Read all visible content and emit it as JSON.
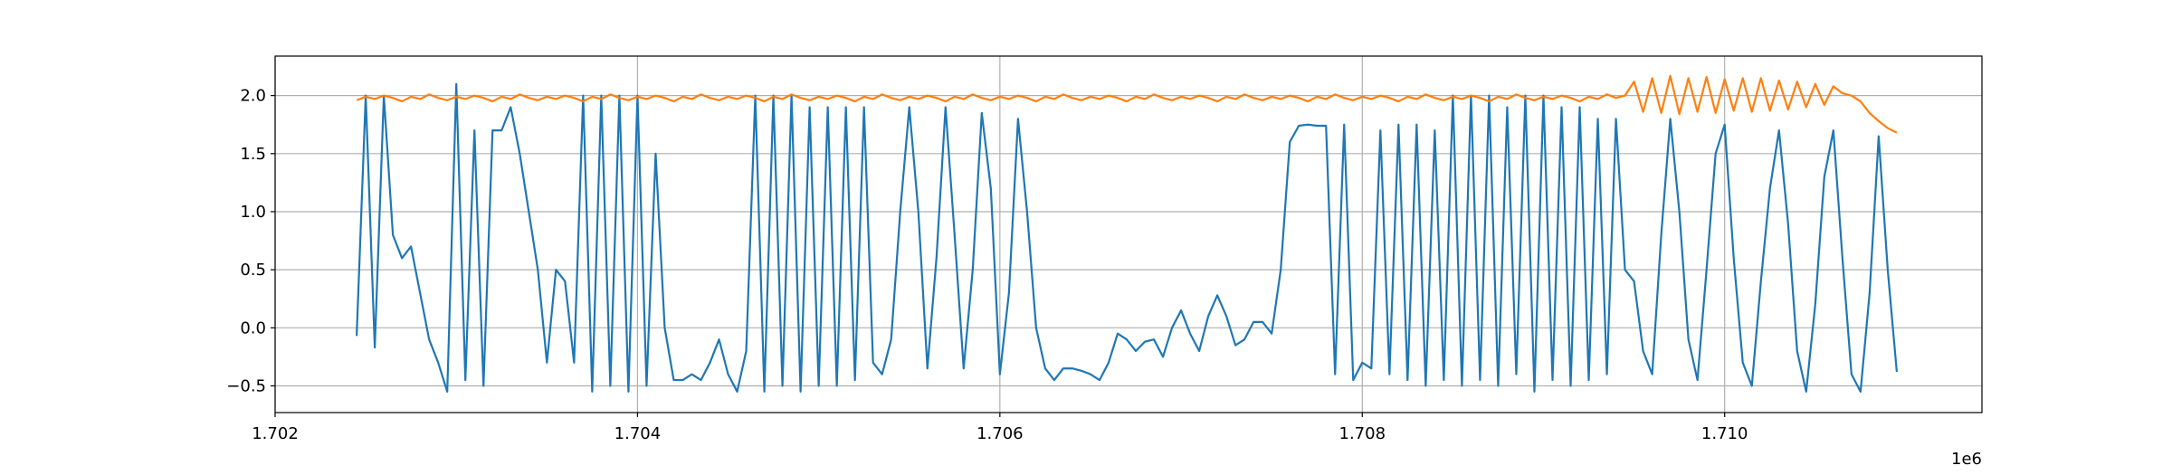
{
  "chart_data": {
    "type": "line",
    "x_offset_label": "1e6",
    "x": [
      1702450,
      1702500,
      1702550,
      1702600,
      1702650,
      1702700,
      1702750,
      1702800,
      1702850,
      1702900,
      1702950,
      1703000,
      1703050,
      1703100,
      1703150,
      1703200,
      1703250,
      1703300,
      1703350,
      1703400,
      1703450,
      1703500,
      1703550,
      1703600,
      1703650,
      1703700,
      1703750,
      1703800,
      1703850,
      1703900,
      1703950,
      1704000,
      1704050,
      1704100,
      1704150,
      1704200,
      1704250,
      1704300,
      1704350,
      1704400,
      1704450,
      1704500,
      1704550,
      1704600,
      1704650,
      1704700,
      1704750,
      1704800,
      1704850,
      1704900,
      1704950,
      1705000,
      1705050,
      1705100,
      1705150,
      1705200,
      1705250,
      1705300,
      1705350,
      1705400,
      1705450,
      1705500,
      1705550,
      1705600,
      1705650,
      1705700,
      1705750,
      1705800,
      1705850,
      1705900,
      1705950,
      1706000,
      1706050,
      1706100,
      1706150,
      1706200,
      1706250,
      1706300,
      1706350,
      1706400,
      1706450,
      1706500,
      1706550,
      1706600,
      1706650,
      1706700,
      1706750,
      1706800,
      1706850,
      1706900,
      1706950,
      1707000,
      1707050,
      1707100,
      1707150,
      1707200,
      1707250,
      1707300,
      1707350,
      1707400,
      1707450,
      1707500,
      1707550,
      1707600,
      1707650,
      1707700,
      1707750,
      1707800,
      1707850,
      1707900,
      1707950,
      1708000,
      1708050,
      1708100,
      1708150,
      1708200,
      1708250,
      1708300,
      1708350,
      1708400,
      1708450,
      1708500,
      1708550,
      1708600,
      1708650,
      1708700,
      1708750,
      1708800,
      1708850,
      1708900,
      1708950,
      1709000,
      1709050,
      1709100,
      1709150,
      1709200,
      1709250,
      1709300,
      1709350,
      1709400,
      1709450,
      1709500,
      1709550,
      1709600,
      1709650,
      1709700,
      1709750,
      1709800,
      1709850,
      1709900,
      1709950,
      1710000,
      1710050,
      1710100,
      1710150,
      1710200,
      1710250,
      1710300,
      1710350,
      1710400,
      1710450,
      1710500,
      1710550,
      1710600,
      1710650,
      1710700,
      1710750,
      1710800,
      1710850,
      1710900,
      1710950
    ],
    "series": [
      {
        "color": "#1f77b4",
        "values": [
          -0.07,
          2.0,
          -0.17,
          2.0,
          0.8,
          0.6,
          0.7,
          0.3,
          -0.1,
          -0.3,
          -0.55,
          2.1,
          -0.45,
          1.7,
          -0.5,
          1.7,
          1.7,
          1.9,
          1.5,
          1.0,
          0.5,
          -0.3,
          0.5,
          0.4,
          -0.3,
          2.0,
          -0.55,
          2.0,
          -0.5,
          2.0,
          -0.55,
          2.0,
          -0.5,
          1.5,
          0.0,
          -0.45,
          -0.45,
          -0.4,
          -0.45,
          -0.3,
          -0.1,
          -0.4,
          -0.55,
          -0.2,
          2.0,
          -0.55,
          2.0,
          -0.5,
          2.0,
          -0.55,
          1.9,
          -0.5,
          1.9,
          -0.5,
          1.9,
          -0.45,
          1.9,
          -0.3,
          -0.4,
          -0.1,
          1.0,
          1.9,
          1.0,
          -0.35,
          0.6,
          1.9,
          0.8,
          -0.35,
          0.5,
          1.85,
          1.2,
          -0.4,
          0.3,
          1.8,
          1.0,
          0.0,
          -0.35,
          -0.45,
          -0.35,
          -0.35,
          -0.37,
          -0.4,
          -0.45,
          -0.3,
          -0.05,
          -0.1,
          -0.2,
          -0.12,
          -0.1,
          -0.25,
          0.0,
          0.15,
          -0.05,
          -0.2,
          0.1,
          0.28,
          0.1,
          -0.15,
          -0.1,
          0.05,
          0.05,
          -0.05,
          0.5,
          1.6,
          1.74,
          1.75,
          1.74,
          1.74,
          -0.4,
          1.75,
          -0.45,
          -0.3,
          -0.35,
          1.7,
          -0.4,
          1.75,
          -0.45,
          1.75,
          -0.5,
          1.7,
          -0.45,
          2.0,
          -0.5,
          2.0,
          -0.45,
          2.0,
          -0.5,
          1.9,
          -0.4,
          2.0,
          -0.55,
          2.0,
          -0.45,
          1.9,
          -0.5,
          1.9,
          -0.45,
          1.8,
          -0.4,
          1.8,
          0.5,
          0.4,
          -0.2,
          -0.4,
          0.8,
          1.8,
          1.0,
          -0.1,
          -0.45,
          0.5,
          1.5,
          1.75,
          0.6,
          -0.3,
          -0.5,
          0.4,
          1.2,
          1.7,
          0.9,
          -0.2,
          -0.55,
          0.2,
          1.3,
          1.7,
          0.6,
          -0.4,
          -0.55,
          0.3,
          1.65,
          0.5,
          -0.38
        ]
      },
      {
        "color": "#ff7f0e",
        "values": [
          1.96,
          1.99,
          1.97,
          2.0,
          1.98,
          1.95,
          1.99,
          1.97,
          2.01,
          1.98,
          1.96,
          1.99,
          1.97,
          2.0,
          1.98,
          1.95,
          1.99,
          1.97,
          2.01,
          1.98,
          1.96,
          1.99,
          1.97,
          2.0,
          1.98,
          1.95,
          1.99,
          1.97,
          2.01,
          1.98,
          1.96,
          1.99,
          1.97,
          2.0,
          1.98,
          1.95,
          1.99,
          1.97,
          2.01,
          1.98,
          1.96,
          1.99,
          1.97,
          2.0,
          1.98,
          1.95,
          1.99,
          1.97,
          2.01,
          1.98,
          1.96,
          1.99,
          1.97,
          2.0,
          1.98,
          1.95,
          1.99,
          1.97,
          2.01,
          1.98,
          1.96,
          1.99,
          1.97,
          2.0,
          1.98,
          1.95,
          1.99,
          1.97,
          2.01,
          1.98,
          1.96,
          1.99,
          1.97,
          2.0,
          1.98,
          1.95,
          1.99,
          1.97,
          2.01,
          1.98,
          1.96,
          1.99,
          1.97,
          2.0,
          1.98,
          1.95,
          1.99,
          1.97,
          2.01,
          1.98,
          1.96,
          1.99,
          1.97,
          2.0,
          1.98,
          1.95,
          1.99,
          1.97,
          2.01,
          1.98,
          1.96,
          1.99,
          1.97,
          2.0,
          1.98,
          1.95,
          1.99,
          1.97,
          2.01,
          1.98,
          1.96,
          1.99,
          1.97,
          2.0,
          1.98,
          1.95,
          1.99,
          1.97,
          2.01,
          1.98,
          1.96,
          1.99,
          1.97,
          2.0,
          1.98,
          1.95,
          1.99,
          1.97,
          2.01,
          1.98,
          1.96,
          1.99,
          1.97,
          2.0,
          1.98,
          1.95,
          1.99,
          1.97,
          2.01,
          1.98,
          2.0,
          2.12,
          1.86,
          2.15,
          1.85,
          2.17,
          1.84,
          2.15,
          1.86,
          2.16,
          1.85,
          2.14,
          1.87,
          2.15,
          1.86,
          2.15,
          1.87,
          2.13,
          1.88,
          2.12,
          1.9,
          2.1,
          1.92,
          2.08,
          2.02,
          2.0,
          1.95,
          1.85,
          1.78,
          1.72,
          1.68
        ]
      }
    ],
    "xlim": [
      1702000,
      1711420
    ],
    "xticks": [
      {
        "value": 1702000,
        "label": "1.702"
      },
      {
        "value": 1704000,
        "label": "1.704"
      },
      {
        "value": 1706000,
        "label": "1.706"
      },
      {
        "value": 1708000,
        "label": "1.708"
      },
      {
        "value": 1710000,
        "label": "1.710"
      }
    ],
    "ylim": [
      -0.73,
      2.34
    ],
    "yticks": [
      {
        "value": -0.5,
        "label": "−0.5"
      },
      {
        "value": 0,
        "label": "0.0"
      },
      {
        "value": 0.5,
        "label": "0.5"
      },
      {
        "value": 1,
        "label": "1.0"
      },
      {
        "value": 1.5,
        "label": "1.5"
      },
      {
        "value": 2,
        "label": "2.0"
      }
    ],
    "grid": true
  }
}
